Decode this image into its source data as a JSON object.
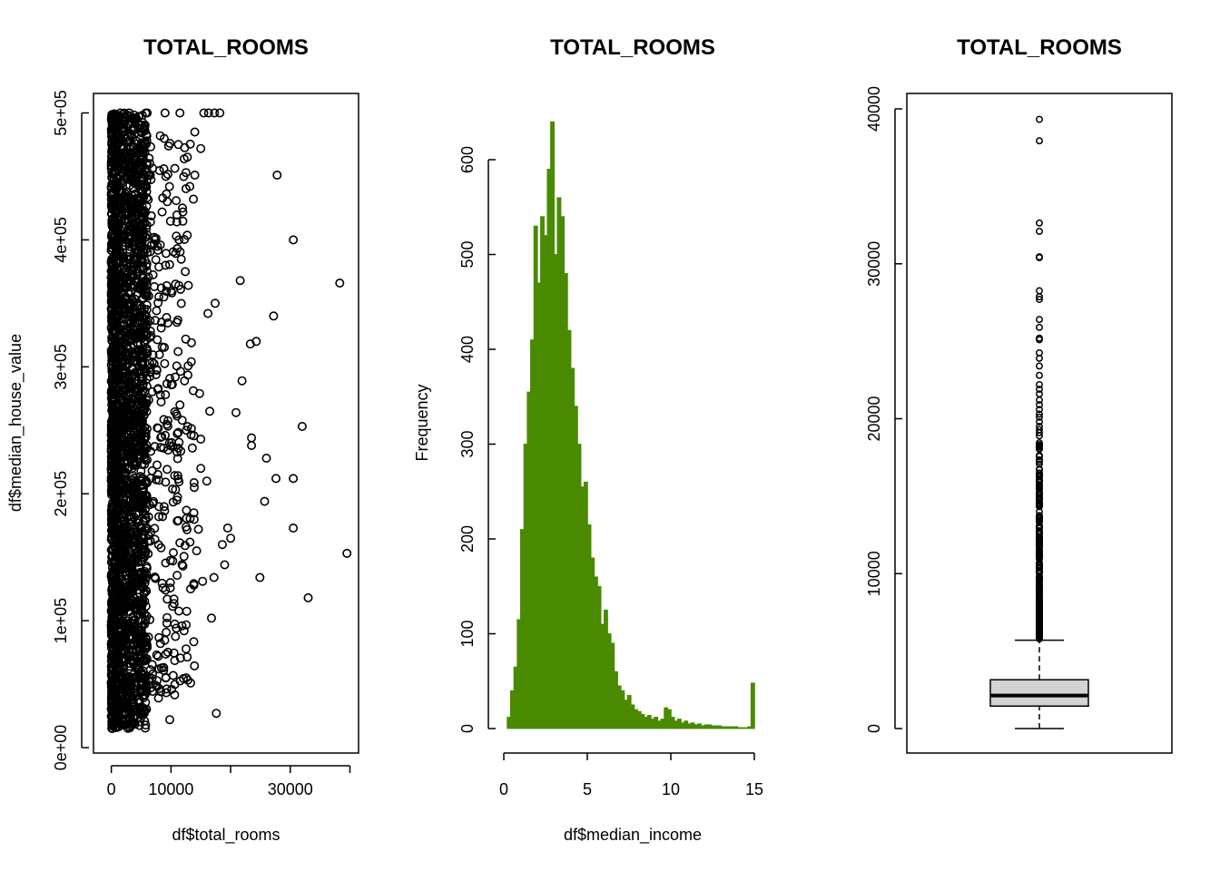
{
  "colors": {
    "hist_fill": "#4a8a00",
    "box_fill": "#d3d3d3",
    "ink": "#000000"
  },
  "chart_data": [
    {
      "type": "scatter",
      "title": "TOTAL_ROOMS",
      "xlabel": "df$total_rooms",
      "ylabel": "df$median_house_value",
      "xlim": [
        -2000,
        40000
      ],
      "ylim": [
        0,
        520000
      ],
      "x_ticks": [
        0,
        10000,
        20000,
        30000,
        40000
      ],
      "x_tick_labels": [
        "0",
        "10000",
        "",
        "30000",
        ""
      ],
      "y_ticks": [
        0,
        100000,
        200000,
        300000,
        400000,
        500000
      ],
      "y_tick_labels": [
        "0e+00",
        "1e+05",
        "2e+05",
        "3e+05",
        "4e+05",
        "5e+05"
      ],
      "marker": "open-circle",
      "dense_region": {
        "x_range": [
          0,
          6000
        ],
        "y_range": [
          15000,
          500001
        ],
        "note": "thousands of overlapping points"
      },
      "points": [
        [
          1500,
          500001
        ],
        [
          3000,
          500001
        ],
        [
          6000,
          500001
        ],
        [
          9000,
          500001
        ],
        [
          11500,
          500001
        ],
        [
          15500,
          500001
        ],
        [
          16300,
          500001
        ],
        [
          17300,
          500001
        ],
        [
          18200,
          500001
        ],
        [
          14000,
          451000
        ],
        [
          27800,
          451000
        ],
        [
          15000,
          472000
        ],
        [
          14000,
          485000
        ],
        [
          30500,
          400000
        ],
        [
          38300,
          366000
        ],
        [
          21600,
          368000
        ],
        [
          27200,
          340000
        ],
        [
          23300,
          318000
        ],
        [
          24300,
          320000
        ],
        [
          21900,
          289000
        ],
        [
          32000,
          253000
        ],
        [
          20900,
          264000
        ],
        [
          23500,
          244000
        ],
        [
          23500,
          238000
        ],
        [
          26000,
          228000
        ],
        [
          27600,
          212000
        ],
        [
          30500,
          212000
        ],
        [
          25700,
          194000
        ],
        [
          30500,
          173000
        ],
        [
          33000,
          118000
        ],
        [
          39500,
          153000
        ],
        [
          24900,
          134000
        ],
        [
          17600,
          27000
        ],
        [
          9800,
          22000
        ],
        [
          12000,
          422000
        ],
        [
          17400,
          350000
        ],
        [
          16200,
          342000
        ],
        [
          19500,
          173000
        ],
        [
          18600,
          160000
        ],
        [
          19000,
          144000
        ],
        [
          17200,
          134000
        ],
        [
          20000,
          165000
        ],
        [
          16500,
          265000
        ],
        [
          15000,
          243000
        ],
        [
          13400,
          304000
        ],
        [
          14800,
          279000
        ],
        [
          12600,
          250000
        ],
        [
          11000,
          335000
        ],
        [
          11500,
          270000
        ],
        [
          12600,
          187000
        ],
        [
          13900,
          205000
        ],
        [
          15000,
          220000
        ],
        [
          14600,
          172000
        ],
        [
          16000,
          210000
        ],
        [
          16800,
          102000
        ],
        [
          10500,
          117000
        ],
        [
          12200,
          92000
        ],
        [
          8000,
          62000
        ],
        [
          8300,
          44000
        ],
        [
          7900,
          39000
        ],
        [
          9300,
          98000
        ],
        [
          10300,
          147000
        ],
        [
          11200,
          312000
        ],
        [
          9100,
          380000
        ],
        [
          10900,
          403000
        ],
        [
          11600,
          361000
        ],
        [
          12400,
          375000
        ],
        [
          8800,
          355000
        ],
        [
          8800,
          456000
        ],
        [
          9600,
          474000
        ],
        [
          8200,
          482000
        ],
        [
          11000,
          195000
        ],
        [
          12000,
          143000
        ],
        [
          13300,
          125000
        ],
        [
          14300,
          155000
        ],
        [
          15300,
          131000
        ],
        [
          9900,
          130000
        ],
        [
          7600,
          73000
        ],
        [
          6900,
          58000
        ]
      ]
    },
    {
      "type": "bar",
      "subtype": "histogram",
      "title": "TOTAL_ROOMS",
      "xlabel": "df$median_income",
      "ylabel": "Frequency",
      "xlim": [
        0,
        15
      ],
      "ylim": [
        0,
        650
      ],
      "x_ticks": [
        0,
        5,
        10,
        15
      ],
      "y_ticks": [
        0,
        100,
        200,
        300,
        400,
        500,
        600
      ],
      "x": [
        0.4,
        0.6,
        0.8,
        1.0,
        1.2,
        1.4,
        1.6,
        1.8,
        2.0,
        2.2,
        2.4,
        2.6,
        2.8,
        3.0,
        3.2,
        3.4,
        3.6,
        3.8,
        4.0,
        4.2,
        4.4,
        4.6,
        4.8,
        5.0,
        5.2,
        5.4,
        5.6,
        5.8,
        6.0,
        6.2,
        6.4,
        6.6,
        6.8,
        7.0,
        7.2,
        7.4,
        7.6,
        7.8,
        8.0,
        8.2,
        8.4,
        8.6,
        8.8,
        9.0,
        9.2,
        9.4,
        9.6,
        9.8,
        10.0,
        10.2,
        10.4,
        10.6,
        10.8,
        11.0,
        11.2,
        11.4,
        11.6,
        11.8,
        12.0,
        12.2,
        12.4,
        12.6,
        12.8,
        13.0,
        13.2,
        13.4,
        13.6,
        13.8,
        14.0,
        14.2,
        14.4,
        14.6,
        14.8,
        15.0
      ],
      "values": [
        12,
        40,
        65,
        115,
        210,
        300,
        355,
        410,
        530,
        470,
        540,
        520,
        590,
        640,
        500,
        560,
        540,
        480,
        420,
        380,
        340,
        300,
        255,
        260,
        215,
        180,
        160,
        150,
        110,
        125,
        100,
        90,
        60,
        45,
        40,
        30,
        35,
        25,
        20,
        18,
        15,
        12,
        14,
        10,
        12,
        8,
        10,
        22,
        20,
        12,
        8,
        10,
        6,
        8,
        5,
        6,
        4,
        5,
        3,
        4,
        4,
        3,
        3,
        3,
        2,
        2,
        2,
        2,
        2,
        1,
        1,
        1,
        2,
        48
      ],
      "bin_width": 0.2
    },
    {
      "type": "box",
      "title": "TOTAL_ROOMS",
      "xlabel": "",
      "ylabel": "",
      "ylim": [
        -1600,
        41000
      ],
      "y_ticks": [
        0,
        10000,
        20000,
        30000,
        40000
      ],
      "min": 2,
      "q1": 1450,
      "median": 2130,
      "q3": 3150,
      "whisker_high": 5700,
      "outliers": [
        39320,
        37940,
        32630,
        32100,
        30450,
        30400,
        28260,
        27870,
        27700,
        26400,
        25900,
        25200,
        25100,
        24250,
        23900,
        23400,
        22800,
        22200,
        21900,
        21600,
        21200,
        20900,
        20600,
        20300,
        20100,
        19800,
        19500,
        19300,
        19100,
        18900
      ],
      "outlier_band": [
        5800,
        18500
      ]
    }
  ]
}
